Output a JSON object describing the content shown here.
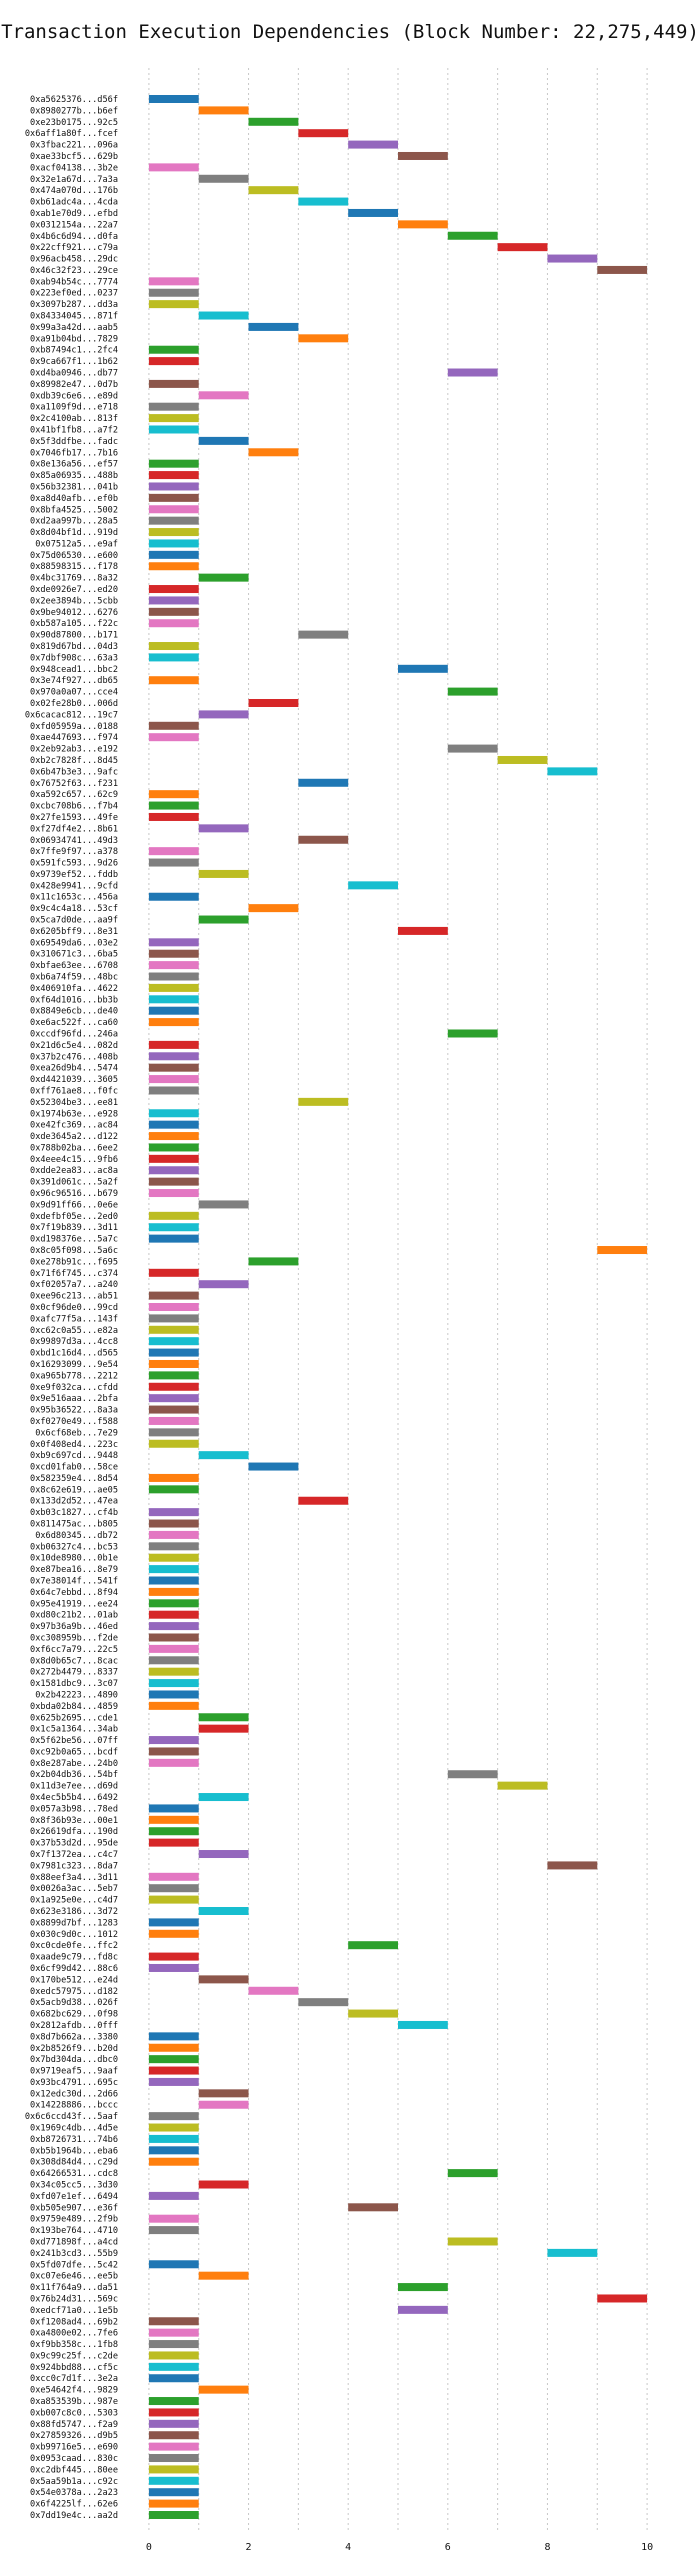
{
  "chart_data": {
    "type": "bar",
    "subtype": "horizontal-gantt",
    "title": "Transaction Execution Dependencies (Block Number: 22,275,449)",
    "xlabel": "",
    "ylabel": "",
    "xlim": [
      -0.5,
      10.5
    ],
    "xticks": [
      "0",
      "2",
      "4",
      "6",
      "8",
      "10"
    ],
    "grid": true,
    "legend": "none",
    "palette": [
      "#1f77b4",
      "#ff7f0e",
      "#2ca02c",
      "#d62728",
      "#9467bd",
      "#8c564b",
      "#e377c2",
      "#7f7f7f",
      "#bcbd22",
      "#17becf"
    ],
    "bar_length": 1,
    "transactions": [
      {
        "hash": "0xa5625376...d56f",
        "start": 0
      },
      {
        "hash": "0x8980277b...b6ef",
        "start": 1
      },
      {
        "hash": "0xe23b0175...92c5",
        "start": 2
      },
      {
        "hash": "0x6aff1a80f...fcef",
        "start": 3
      },
      {
        "hash": "0x3fbac221...096a",
        "start": 4
      },
      {
        "hash": "0xae33bcf5...629b",
        "start": 5
      },
      {
        "hash": "0xacf04138...3b2e",
        "start": 0
      },
      {
        "hash": "0x32e1a67d...7a3a",
        "start": 1
      },
      {
        "hash": "0x474a070d...176b",
        "start": 2
      },
      {
        "hash": "0xb61adc4a...4cda",
        "start": 3
      },
      {
        "hash": "0xab1e70d9...efbd",
        "start": 4
      },
      {
        "hash": "0x0312154a...22a7",
        "start": 5
      },
      {
        "hash": "0x4b6c6d94...d0fa",
        "start": 6
      },
      {
        "hash": "0x22cff921...c79a",
        "start": 7
      },
      {
        "hash": "0x96acb458...29dc",
        "start": 8
      },
      {
        "hash": "0x46c32f23...29ce",
        "start": 9
      },
      {
        "hash": "0xab94b54c...7774",
        "start": 0
      },
      {
        "hash": "0x223ef0ed...0237",
        "start": 0
      },
      {
        "hash": "0x3097b287...dd3a",
        "start": 0
      },
      {
        "hash": "0x84334045...871f",
        "start": 1
      },
      {
        "hash": "0x99a3a42d...aab5",
        "start": 2
      },
      {
        "hash": "0xa91b04bd...7829",
        "start": 3
      },
      {
        "hash": "0xb87494c1...2fc4",
        "start": 0
      },
      {
        "hash": "0x9ca667f1...1b62",
        "start": 0
      },
      {
        "hash": "0xd4ba0946...db77",
        "start": 6
      },
      {
        "hash": "0x89982e47...0d7b",
        "start": 0
      },
      {
        "hash": "0xdb39c6e6...e89d",
        "start": 1
      },
      {
        "hash": "0xa1109f9d...e718",
        "start": 0
      },
      {
        "hash": "0x2c4100ab...813f",
        "start": 0
      },
      {
        "hash": "0x41bf1fb8...a7f2",
        "start": 0
      },
      {
        "hash": "0x5f3ddfbe...fadc",
        "start": 1
      },
      {
        "hash": "0x7046fb17...7b16",
        "start": 2
      },
      {
        "hash": "0x8e136a56...ef57",
        "start": 0
      },
      {
        "hash": "0x85a06935...488b",
        "start": 0
      },
      {
        "hash": "0x56b32381...041b",
        "start": 0
      },
      {
        "hash": "0xa8d40afb...ef0b",
        "start": 0
      },
      {
        "hash": "0x8bfa4525...5002",
        "start": 0
      },
      {
        "hash": "0xd2aa997b...28a5",
        "start": 0
      },
      {
        "hash": "0x8d04bf1d...919d",
        "start": 0
      },
      {
        "hash": "0x07512a5...e9af",
        "start": 0
      },
      {
        "hash": "0x75d06530...e600",
        "start": 0
      },
      {
        "hash": "0x88598315...f178",
        "start": 0
      },
      {
        "hash": "0x4bc31769...8a32",
        "start": 1
      },
      {
        "hash": "0xde0926e7...ed20",
        "start": 0
      },
      {
        "hash": "0x2ee3894b...5cbb",
        "start": 0
      },
      {
        "hash": "0x9be94012...6276",
        "start": 0
      },
      {
        "hash": "0xb587a105...f22c",
        "start": 0
      },
      {
        "hash": "0x90d87800...b171",
        "start": 3
      },
      {
        "hash": "0x819d67bd...04d3",
        "start": 0
      },
      {
        "hash": "0x7dbf908c...63a3",
        "start": 0
      },
      {
        "hash": "0x948cead1...bbc2",
        "start": 5
      },
      {
        "hash": "0x3e74f927...db65",
        "start": 0
      },
      {
        "hash": "0x970a0a07...cce4",
        "start": 6
      },
      {
        "hash": "0x02fe28b0...006d",
        "start": 2
      },
      {
        "hash": "0x6cacac812...19c7",
        "start": 1
      },
      {
        "hash": "0xfd05959a...0188",
        "start": 0
      },
      {
        "hash": "0xae447693...f974",
        "start": 0
      },
      {
        "hash": "0x2eb92ab3...e192",
        "start": 6
      },
      {
        "hash": "0xb2c7828f...8d45",
        "start": 7
      },
      {
        "hash": "0x6b47b3e3...9afc",
        "start": 8
      },
      {
        "hash": "0x76752f63...f231",
        "start": 3
      },
      {
        "hash": "0xa592c657...62c9",
        "start": 0
      },
      {
        "hash": "0xcbc708b6...f7b4",
        "start": 0
      },
      {
        "hash": "0x27fe1593...49fe",
        "start": 0
      },
      {
        "hash": "0xf27df4e2...8b61",
        "start": 1
      },
      {
        "hash": "0x06934741...49d3",
        "start": 3
      },
      {
        "hash": "0x7ffe9f97...a378",
        "start": 0
      },
      {
        "hash": "0x591fc593...9d26",
        "start": 0
      },
      {
        "hash": "0x9739ef52...fddb",
        "start": 1
      },
      {
        "hash": "0x428e9941...9cfd",
        "start": 4
      },
      {
        "hash": "0x11c1653c...456a",
        "start": 0
      },
      {
        "hash": "0x9c4c4a18...53cf",
        "start": 2
      },
      {
        "hash": "0x5ca7d0de...aa9f",
        "start": 1
      },
      {
        "hash": "0x6205bff9...8e31",
        "start": 5
      },
      {
        "hash": "0x69549da6...03e2",
        "start": 0
      },
      {
        "hash": "0x310671c3...6ba5",
        "start": 0
      },
      {
        "hash": "0xbfae63ee...6708",
        "start": 0
      },
      {
        "hash": "0xb6a74f59...48bc",
        "start": 0
      },
      {
        "hash": "0x406910fa...4622",
        "start": 0
      },
      {
        "hash": "0xf64d1016...bb3b",
        "start": 0
      },
      {
        "hash": "0x8849e6cb...de40",
        "start": 0
      },
      {
        "hash": "0xe6ac522f...ca60",
        "start": 0
      },
      {
        "hash": "0xccdf96fd...246a",
        "start": 6
      },
      {
        "hash": "0x21d6c5e4...082d",
        "start": 0
      },
      {
        "hash": "0x37b2c476...408b",
        "start": 0
      },
      {
        "hash": "0xea26d9b4...5474",
        "start": 0
      },
      {
        "hash": "0xd4421039...3605",
        "start": 0
      },
      {
        "hash": "0xff761ae8...f0fc",
        "start": 0
      },
      {
        "hash": "0x52304be3...ee81",
        "start": 3
      },
      {
        "hash": "0x1974b63e...e928",
        "start": 0
      },
      {
        "hash": "0xe42fc369...ac84",
        "start": 0
      },
      {
        "hash": "0xde3645a2...d122",
        "start": 0
      },
      {
        "hash": "0x788b02ba...6ee2",
        "start": 0
      },
      {
        "hash": "0x4eee4c15...9fb6",
        "start": 0
      },
      {
        "hash": "0xdde2ea83...ac8a",
        "start": 0
      },
      {
        "hash": "0x391d061c...5a2f",
        "start": 0
      },
      {
        "hash": "0x96c96516...b679",
        "start": 0
      },
      {
        "hash": "0x9d91ff66...0e6e",
        "start": 1
      },
      {
        "hash": "0xdefbf05e...2ed0",
        "start": 0
      },
      {
        "hash": "0x7f19b839...3d11",
        "start": 0
      },
      {
        "hash": "0xd198376e...5a7c",
        "start": 0
      },
      {
        "hash": "0x8c05f098...5a6c",
        "start": 9
      },
      {
        "hash": "0xe278b91c...f695",
        "start": 2
      },
      {
        "hash": "0x71f6f745...c374",
        "start": 0
      },
      {
        "hash": "0xf02057a7...a240",
        "start": 1
      },
      {
        "hash": "0xee96c213...ab51",
        "start": 0
      },
      {
        "hash": "0x0cf96de0...99cd",
        "start": 0
      },
      {
        "hash": "0xafc77f5a...143f",
        "start": 0
      },
      {
        "hash": "0xc62c0a55...e82a",
        "start": 0
      },
      {
        "hash": "0x99897d3a...4cc8",
        "start": 0
      },
      {
        "hash": "0xbd1c16d4...d565",
        "start": 0
      },
      {
        "hash": "0x16293099...9e54",
        "start": 0
      },
      {
        "hash": "0xa965b778...2212",
        "start": 0
      },
      {
        "hash": "0xe9f032ca...cfdd",
        "start": 0
      },
      {
        "hash": "0x9e516aaa...2bfa",
        "start": 0
      },
      {
        "hash": "0x95b36522...8a3a",
        "start": 0
      },
      {
        "hash": "0xf0270e49...f588",
        "start": 0
      },
      {
        "hash": "0x6cf68eb...7e29",
        "start": 0
      },
      {
        "hash": "0x0f408ed4...223c",
        "start": 0
      },
      {
        "hash": "0xb9c697cd...9448",
        "start": 1
      },
      {
        "hash": "0xcd01fab0...58ce",
        "start": 2
      },
      {
        "hash": "0x582359e4...8d54",
        "start": 0
      },
      {
        "hash": "0x8c62e619...ae05",
        "start": 0
      },
      {
        "hash": "0x133d2d52...47ea",
        "start": 3
      },
      {
        "hash": "0xb03c1827...cf4b",
        "start": 0
      },
      {
        "hash": "0x811475ac...b805",
        "start": 0
      },
      {
        "hash": "0x6d80345...db72",
        "start": 0
      },
      {
        "hash": "0xb06327c4...bc53",
        "start": 0
      },
      {
        "hash": "0x10de8980...0b1e",
        "start": 0
      },
      {
        "hash": "0xe87bea16...8e79",
        "start": 0
      },
      {
        "hash": "0x7e38014f...541f",
        "start": 0
      },
      {
        "hash": "0x64c7ebbd...8f94",
        "start": 0
      },
      {
        "hash": "0x95e41919...ee24",
        "start": 0
      },
      {
        "hash": "0xd80c21b2...01ab",
        "start": 0
      },
      {
        "hash": "0x97b36a9b...46ed",
        "start": 0
      },
      {
        "hash": "0xc308959b...f2de",
        "start": 0
      },
      {
        "hash": "0xf6cc7a79...22c5",
        "start": 0
      },
      {
        "hash": "0x8d0b65c7...8cac",
        "start": 0
      },
      {
        "hash": "0x272b4479...8337",
        "start": 0
      },
      {
        "hash": "0x1581dbc9...3c07",
        "start": 0
      },
      {
        "hash": "0x2b42223...4890",
        "start": 0
      },
      {
        "hash": "0xbda02b84...4859",
        "start": 0
      },
      {
        "hash": "0x625b2695...cde1",
        "start": 1
      },
      {
        "hash": "0x1c5a1364...34ab",
        "start": 1
      },
      {
        "hash": "0x5f62be56...07ff",
        "start": 0
      },
      {
        "hash": "0xc92b0a65...bcdf",
        "start": 0
      },
      {
        "hash": "0x8e287abe...24b0",
        "start": 0
      },
      {
        "hash": "0x2b04db36...54bf",
        "start": 6
      },
      {
        "hash": "0x11d3e7ee...d69d",
        "start": 7
      },
      {
        "hash": "0x4ec5b5b4...6492",
        "start": 1
      },
      {
        "hash": "0x057a3b98...78ed",
        "start": 0
      },
      {
        "hash": "0x8f36b93e...00e1",
        "start": 0
      },
      {
        "hash": "0x26619dfa...190d",
        "start": 0
      },
      {
        "hash": "0x37b53d2d...95de",
        "start": 0
      },
      {
        "hash": "0x7f1372ea...c4c7",
        "start": 1
      },
      {
        "hash": "0x7981c323...8da7",
        "start": 8
      },
      {
        "hash": "0x88eef3a4...3d11",
        "start": 0
      },
      {
        "hash": "0x0026a3ac...5eb7",
        "start": 0
      },
      {
        "hash": "0x1a925e0e...c4d7",
        "start": 0
      },
      {
        "hash": "0x623e3186...3d72",
        "start": 1
      },
      {
        "hash": "0x8899d7bf...1283",
        "start": 0
      },
      {
        "hash": "0x030c9d0c...1012",
        "start": 0
      },
      {
        "hash": "0xc0cde0fe...ffc2",
        "start": 4
      },
      {
        "hash": "0xaade9c79...fd8c",
        "start": 0
      },
      {
        "hash": "0x6cf99d42...88c6",
        "start": 0
      },
      {
        "hash": "0x170be512...e24d",
        "start": 1
      },
      {
        "hash": "0xedc57975...d182",
        "start": 2
      },
      {
        "hash": "0x5acb9d38...026f",
        "start": 3
      },
      {
        "hash": "0x682bc629...0f98",
        "start": 4
      },
      {
        "hash": "0x2812afdb...0fff",
        "start": 5
      },
      {
        "hash": "0x8d7b662a...3380",
        "start": 0
      },
      {
        "hash": "0x2b8526f9...b20d",
        "start": 0
      },
      {
        "hash": "0x7bd304da...dbc0",
        "start": 0
      },
      {
        "hash": "0x9719eaf5...9aaf",
        "start": 0
      },
      {
        "hash": "0x93bc4791...695c",
        "start": 0
      },
      {
        "hash": "0x12edc30d...2d66",
        "start": 1
      },
      {
        "hash": "0x14228886...bccc",
        "start": 1
      },
      {
        "hash": "0x6c6ccd43f...5aaf",
        "start": 0
      },
      {
        "hash": "0x1969c4db...4d5e",
        "start": 0
      },
      {
        "hash": "0xb8726731...74b6",
        "start": 0
      },
      {
        "hash": "0xb5b1964b...eba6",
        "start": 0
      },
      {
        "hash": "0x308d84d4...c29d",
        "start": 0
      },
      {
        "hash": "0x64266531...cdc8",
        "start": 6
      },
      {
        "hash": "0x34c05cc5...3d30",
        "start": 1
      },
      {
        "hash": "0xfd07e1ef...6494",
        "start": 0
      },
      {
        "hash": "0xb505e907...e36f",
        "start": 4
      },
      {
        "hash": "0x9759e489...2f9b",
        "start": 0
      },
      {
        "hash": "0x193be764...4710",
        "start": 0
      },
      {
        "hash": "0xd771898f...a4cd",
        "start": 6
      },
      {
        "hash": "0x241b3cd3...55b9",
        "start": 8
      },
      {
        "hash": "0x5fd07dfe...5c42",
        "start": 0
      },
      {
        "hash": "0xc07e6e46...ee5b",
        "start": 1
      },
      {
        "hash": "0x11f764a9...da51",
        "start": 5
      },
      {
        "hash": "0x76b24d31...569c",
        "start": 9
      },
      {
        "hash": "0xedcf71a0...1e5b",
        "start": 5
      },
      {
        "hash": "0xf1208ad4...69b2",
        "start": 0
      },
      {
        "hash": "0xa4800e02...7fe6",
        "start": 0
      },
      {
        "hash": "0xf9bb358c...1fb8",
        "start": 0
      },
      {
        "hash": "0x9c99c25f...c2de",
        "start": 0
      },
      {
        "hash": "0x924bbd88...cf5c",
        "start": 0
      },
      {
        "hash": "0xcc0c7d1f...3e2a",
        "start": 0
      },
      {
        "hash": "0xe54642f4...9829",
        "start": 1
      },
      {
        "hash": "0xa853539b...987e",
        "start": 0
      },
      {
        "hash": "0xb007c8c0...5303",
        "start": 0
      },
      {
        "hash": "0x88fd5747...f2a9",
        "start": 0
      },
      {
        "hash": "0x27859326...d9b5",
        "start": 0
      },
      {
        "hash": "0xb99716e5...e690",
        "start": 0
      },
      {
        "hash": "0x0953caad...830c",
        "start": 0
      },
      {
        "hash": "0xc2dbf445...80ee",
        "start": 0
      },
      {
        "hash": "0x5aa59b1a...c92c",
        "start": 0
      },
      {
        "hash": "0x54e0378a...2a23",
        "start": 0
      },
      {
        "hash": "0x6f4225lf...62e6",
        "start": 0
      },
      {
        "hash": "0x7dd19e4c...aa2d",
        "start": 0
      }
    ]
  }
}
